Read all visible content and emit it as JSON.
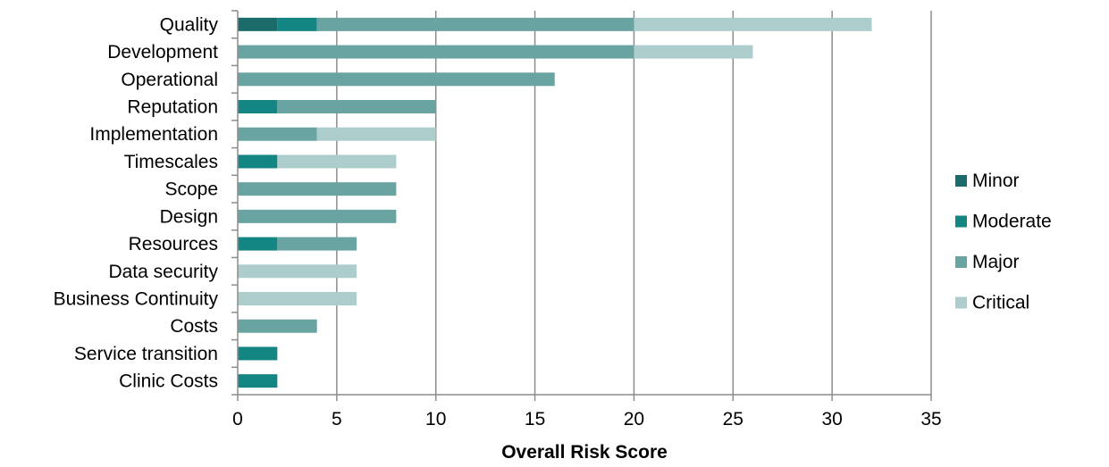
{
  "chart_data": {
    "type": "bar",
    "orientation": "horizontal",
    "stacked": true,
    "categories": [
      "Quality",
      "Development",
      "Operational",
      "Reputation",
      "Implementation",
      "Timescales",
      "Scope",
      "Design",
      "Resources",
      "Data security",
      "Business Continuity",
      "Costs",
      "Service transition",
      "Clinic Costs"
    ],
    "series": [
      {
        "name": "Minor",
        "color": "#1b6b6b",
        "values": [
          2,
          0,
          0,
          0,
          0,
          0,
          0,
          0,
          0,
          0,
          0,
          0,
          0,
          0
        ]
      },
      {
        "name": "Moderate",
        "color": "#138582",
        "values": [
          2,
          0,
          0,
          2,
          0,
          2,
          0,
          0,
          2,
          0,
          0,
          0,
          2,
          2
        ]
      },
      {
        "name": "Major",
        "color": "#6aa4a2",
        "values": [
          16,
          20,
          16,
          8,
          4,
          0,
          8,
          8,
          4,
          0,
          0,
          4,
          0,
          0
        ]
      },
      {
        "name": "Critical",
        "color": "#adcdcc",
        "values": [
          12,
          6,
          0,
          0,
          6,
          6,
          0,
          0,
          0,
          6,
          6,
          0,
          0,
          0
        ]
      }
    ],
    "xlabel": "Overall Risk Score",
    "xlim": [
      0,
      35
    ],
    "xticks": [
      0,
      5,
      10,
      15,
      20,
      25,
      30,
      35
    ],
    "grid": "vertical",
    "legend": "right"
  }
}
